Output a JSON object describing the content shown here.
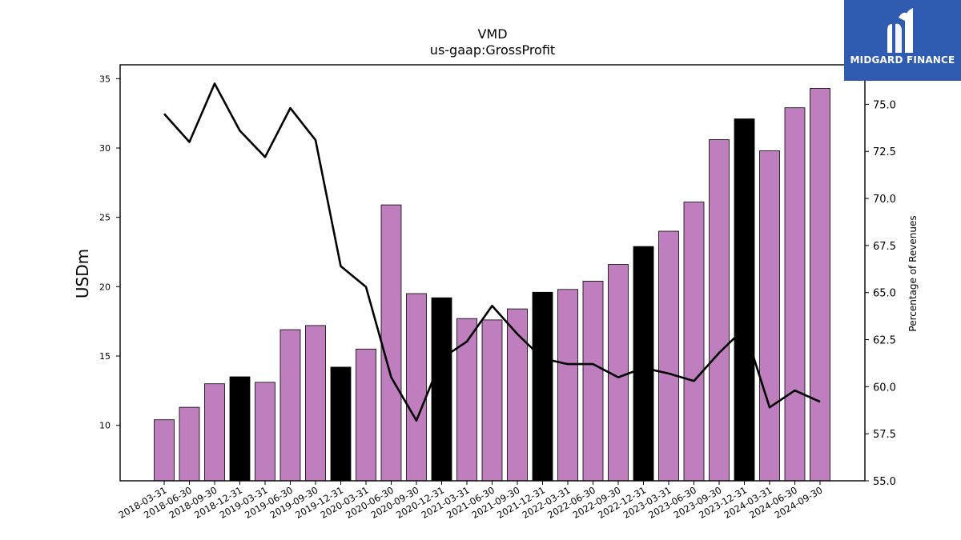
{
  "chart_data": {
    "type": "bar",
    "title": "VMD",
    "subtitle": "us-gaap:GrossProfit",
    "ylabel": "USDm",
    "y2label": "Percentage of Revenues",
    "ylim": [
      6,
      36
    ],
    "y2lim": [
      55,
      77.1
    ],
    "yticks": [
      10,
      15,
      20,
      25,
      30,
      35
    ],
    "y2ticks": [
      "55.0",
      "57.5",
      "60.0",
      "62.5",
      "65.0",
      "67.5",
      "70.0",
      "72.5",
      "75.0"
    ],
    "categories": [
      "2018-03-31",
      "2018-06-30",
      "2018-09-30",
      "2018-12-31",
      "2019-03-31",
      "2019-06-30",
      "2019-09-30",
      "2019-12-31",
      "2020-03-31",
      "2020-06-30",
      "2020-09-30",
      "2020-12-31",
      "2021-03-31",
      "2021-06-30",
      "2021-09-30",
      "2021-12-31",
      "2022-03-31",
      "2022-06-30",
      "2022-09-30",
      "2022-12-31",
      "2023-03-31",
      "2023-06-30",
      "2023-09-30",
      "2023-12-31",
      "2024-03-31",
      "2024-06-30",
      "2024-09-30"
    ],
    "series": [
      {
        "values": [
          10.4,
          11.3,
          13.0,
          13.5,
          13.1,
          16.9,
          17.2,
          14.2,
          15.5,
          25.9,
          19.5,
          19.2,
          17.7,
          17.6,
          18.4,
          19.6,
          19.8,
          20.4,
          21.6,
          22.9,
          24.0,
          26.1,
          30.6,
          32.1,
          29.8,
          32.9,
          34.3
        ],
        "q4_highlight": [
          false,
          false,
          false,
          true,
          false,
          false,
          false,
          true,
          false,
          false,
          false,
          true,
          false,
          false,
          false,
          true,
          false,
          false,
          false,
          true,
          false,
          false,
          false,
          true,
          false,
          false,
          false
        ]
      },
      {
        "axis": "right",
        "type": "line",
        "values": [
          74.5,
          73.0,
          76.1,
          73.6,
          72.2,
          74.8,
          73.1,
          66.4,
          65.3,
          60.5,
          58.2,
          61.5,
          62.4,
          64.3,
          62.8,
          61.5,
          61.2,
          61.2,
          60.5,
          61.0,
          60.7,
          60.3,
          61.8,
          63.1,
          58.9,
          59.8,
          59.2
        ]
      }
    ],
    "colors": {
      "bar": "#bf7fbf",
      "bar_q4": "#000000",
      "line": "#000000"
    }
  },
  "logo": {
    "text": "MIDGARD FINANCE",
    "bg": "#2f5bb0"
  }
}
